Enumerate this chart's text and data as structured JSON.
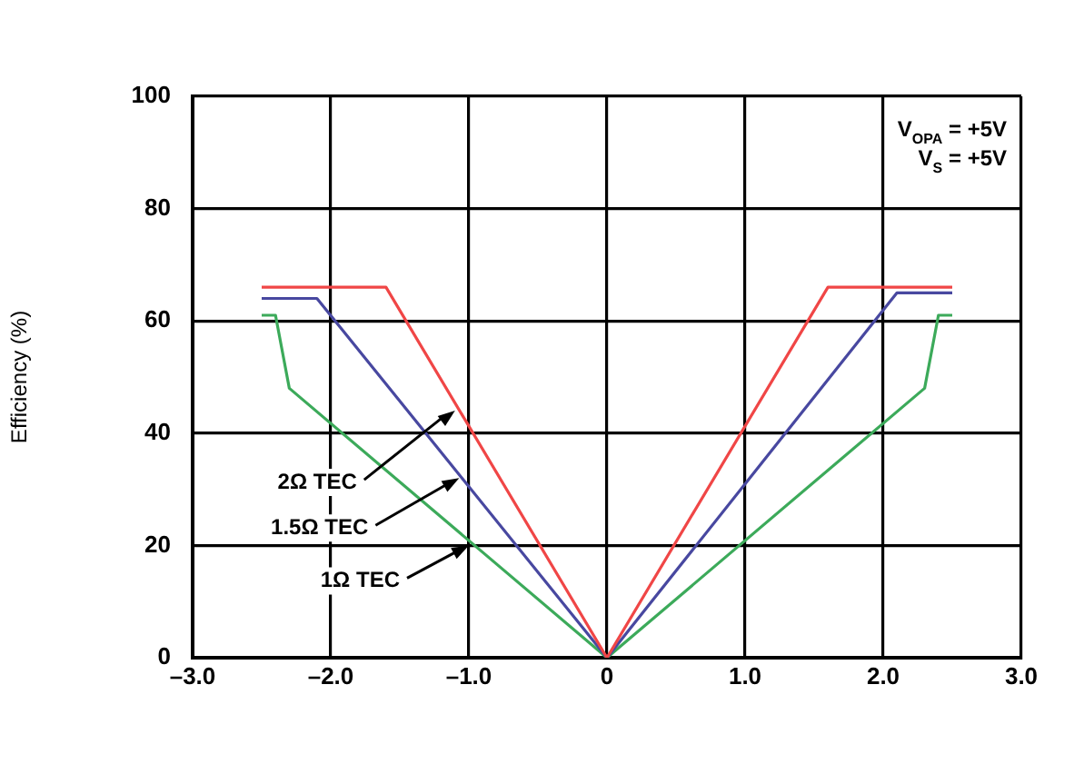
{
  "chart_data": {
    "type": "line",
    "ylabel": "Efficiency (%)",
    "xlim": [
      -3,
      3
    ],
    "ylim": [
      0,
      100
    ],
    "xticks": [
      {
        "value": -3,
        "label": "–3.0"
      },
      {
        "value": -2,
        "label": "–2.0"
      },
      {
        "value": -1,
        "label": "–1.0"
      },
      0,
      {
        "value": 1,
        "label": "1.0"
      },
      {
        "value": 2,
        "label": "2.0"
      },
      {
        "value": 3,
        "label": "3.0"
      }
    ],
    "yticks": [
      0,
      20,
      40,
      60,
      80,
      100
    ],
    "grid": true,
    "legend": false,
    "marker": "none",
    "line_style": "solid",
    "series": [
      {
        "color": "#f04646",
        "x": [
          -2.5,
          -1.6,
          0,
          1.6,
          2.5
        ],
        "values": [
          66,
          66,
          0,
          66,
          66
        ]
      },
      {
        "color": "#4848a0",
        "x": [
          -2.5,
          -2.1,
          0,
          2.1,
          2.5
        ],
        "values": [
          64,
          64,
          0,
          65,
          65
        ]
      },
      {
        "color": "#3caa5a",
        "x": [
          -2.5,
          -2.4,
          -2.3,
          0,
          2.3,
          2.4,
          2.5
        ],
        "values": [
          61,
          61,
          48,
          0,
          48,
          61,
          61
        ]
      }
    ],
    "annotations": [
      {
        "text": "2Ω TEC",
        "x": -1.1,
        "y": 44
      },
      {
        "text": "1.5Ω TEC",
        "x": -1.07,
        "y": 32
      },
      {
        "text": "1Ω TEC",
        "x": -1.0,
        "y": 20
      },
      "V$_{OPA}$ = +5V",
      "V$_{S}$ = +5V"
    ]
  }
}
